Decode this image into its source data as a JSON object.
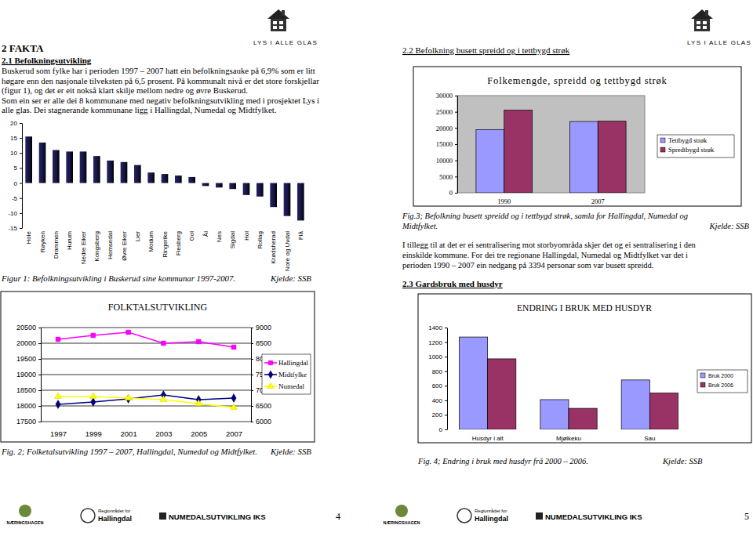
{
  "chart_data": [
    {
      "type": "bar",
      "categories": [
        "Hole",
        "Røyken",
        "Drammen",
        "Hurum",
        "Nedre Eiker",
        "Kongsberg",
        "Hemsedal",
        "Øvre Eiker",
        "Lier",
        "Modum",
        "Ringerike",
        "Flesberg",
        "Gol",
        "Ål",
        "Nes",
        "Sigdal",
        "Hol",
        "Rollag",
        "Krødsherad",
        "Nore og Uvdal",
        "Flå"
      ],
      "values": [
        15.5,
        13.5,
        11,
        10.5,
        10.5,
        9,
        7.5,
        7,
        6,
        3.5,
        3,
        2.5,
        2,
        -1,
        -1.5,
        -2,
        -4,
        -4.5,
        -8,
        -11,
        -12.5
      ],
      "color": "#14143c",
      "ylim": [
        -15,
        20
      ],
      "yticks": [
        -15,
        -10,
        -5,
        0,
        5,
        10,
        15,
        20
      ]
    },
    {
      "type": "line",
      "title": "FOLKTALSUTVIKLING",
      "categories": [
        "1997",
        "1999",
        "2001",
        "2003",
        "2005",
        "2007"
      ],
      "series": [
        {
          "name": "Hallingdal",
          "color": "#ff00ff",
          "marker": "square",
          "values": [
            20125,
            20250,
            20350,
            20000,
            20050,
            19875
          ]
        },
        {
          "name": "Midtfylke",
          "color": "#000080",
          "marker": "diamond",
          "axis": "y2",
          "values": [
            6550,
            6625,
            6725,
            6850,
            6700,
            6750
          ]
        },
        {
          "name": "Numedal",
          "color": "#ffff00",
          "marker": "triangle",
          "axis": "y2",
          "values": [
            6800,
            6800,
            6750,
            6700,
            6575,
            6450
          ]
        }
      ],
      "ylim": [
        17500,
        20500
      ],
      "yticks": [
        17500,
        18000,
        18500,
        19000,
        19500,
        20000,
        20500
      ],
      "y2lim": [
        6000,
        9000
      ],
      "y2ticks": [
        6000,
        6500,
        7000,
        7500,
        8000,
        8500,
        9000
      ],
      "grid": true,
      "legend": "right"
    },
    {
      "type": "bar",
      "title": "Folkemengde, spreidd og tettbygd strøk",
      "categories": [
        "1990",
        "2007"
      ],
      "series": [
        {
          "name": "Tettbygd strøk",
          "color": "#9999ff",
          "values": [
            19500,
            22000
          ]
        },
        {
          "name": "Spredtbygd strøk",
          "color": "#993366",
          "values": [
            25500,
            22100
          ]
        }
      ],
      "ylim": [
        0,
        30000
      ],
      "yticks": [
        0,
        5000,
        10000,
        15000,
        20000,
        25000,
        30000
      ],
      "legend": "right"
    },
    {
      "type": "bar",
      "title": "ENDRING I BRUK MED HUSDYR",
      "categories": [
        "Husdyr i alt",
        "Mjølkeku",
        "Sau"
      ],
      "series": [
        {
          "name": "Bruk 2000",
          "color": "#9999ff",
          "values": [
            1270,
            410,
            680
          ]
        },
        {
          "name": "Bruk 2006",
          "color": "#993366",
          "values": [
            970,
            290,
            500
          ]
        }
      ],
      "ylim": [
        0,
        1400
      ],
      "yticks": [
        0,
        200,
        400,
        600,
        800,
        1000,
        1200,
        1400
      ],
      "legend": "right"
    }
  ],
  "document": {
    "source": "Kjelde: SSB",
    "left_page": {
      "logo": "LYS I ALLE GLAS",
      "heading": "2 FAKTA",
      "subheading": "2.1 Befolkningsutvikling",
      "paragraph": [
        "Buskerud som fylke har i perioden 1997 – 2007 hatt ein befolkningsauke på 6,9% som er litt",
        "høgare enn den nasjonale tilveksten på 6,5 prosent. På kommunalt nivå er det store forskjellar",
        "(figur 1), og det er eit nokså klart skilje mellom nedre og øvre Buskerud.",
        "Som ein ser er alle dei 8 kommunane med negativ befolkningsutvikling med i prosjektet Lys i",
        "alle glas. Dei stagnerande kommunane ligg i Hallingdal, Numedal  og Midtfylket."
      ],
      "fig1_caption": "Figur 1: Befolkningsutvikling i Buskerud sine kommunar 1997-2007.",
      "fig2_caption": "Fig. 2; Folketalsutvikling 1997 – 2007, Hallingdal, Numedal og Midtfylket.",
      "page_number": "4"
    },
    "right_page": {
      "logo": "LYS I ALLE GLAS",
      "heading_2_2": "2.2 Befolkning busett spreidd og i tettbygd strøk",
      "fig3_caption": [
        "Fig.3; Befolkning busett spreidd og i tettbygd strøk, samla for Hallingdal, Numedal og",
        "Midtfylket."
      ],
      "paragraph": [
        "I tillegg til at det er ei sentralisering mot storbyområda skjer det og ei sentralisering i den",
        "einskilde kommune. For dei tre regionane Hallingdal, Numedal og Midtfylket var det i",
        "perioden 1990 – 2007 ein nedgang på 3394 personar som var busett spreidd."
      ],
      "heading_2_3": "2.3 Gardsbruk med husdyr",
      "fig4_caption": "Fig. 4; Endring i bruk med husdyr frå 2000 – 2006.",
      "page_number": "5"
    },
    "footer": {
      "naeringshagen": "NÆRINGSHAGEN",
      "regionradet": "Regionrådet for",
      "hallingdal": "Hallingdal",
      "numedal": "NUMEDALSUTVIKLING IKS"
    }
  }
}
